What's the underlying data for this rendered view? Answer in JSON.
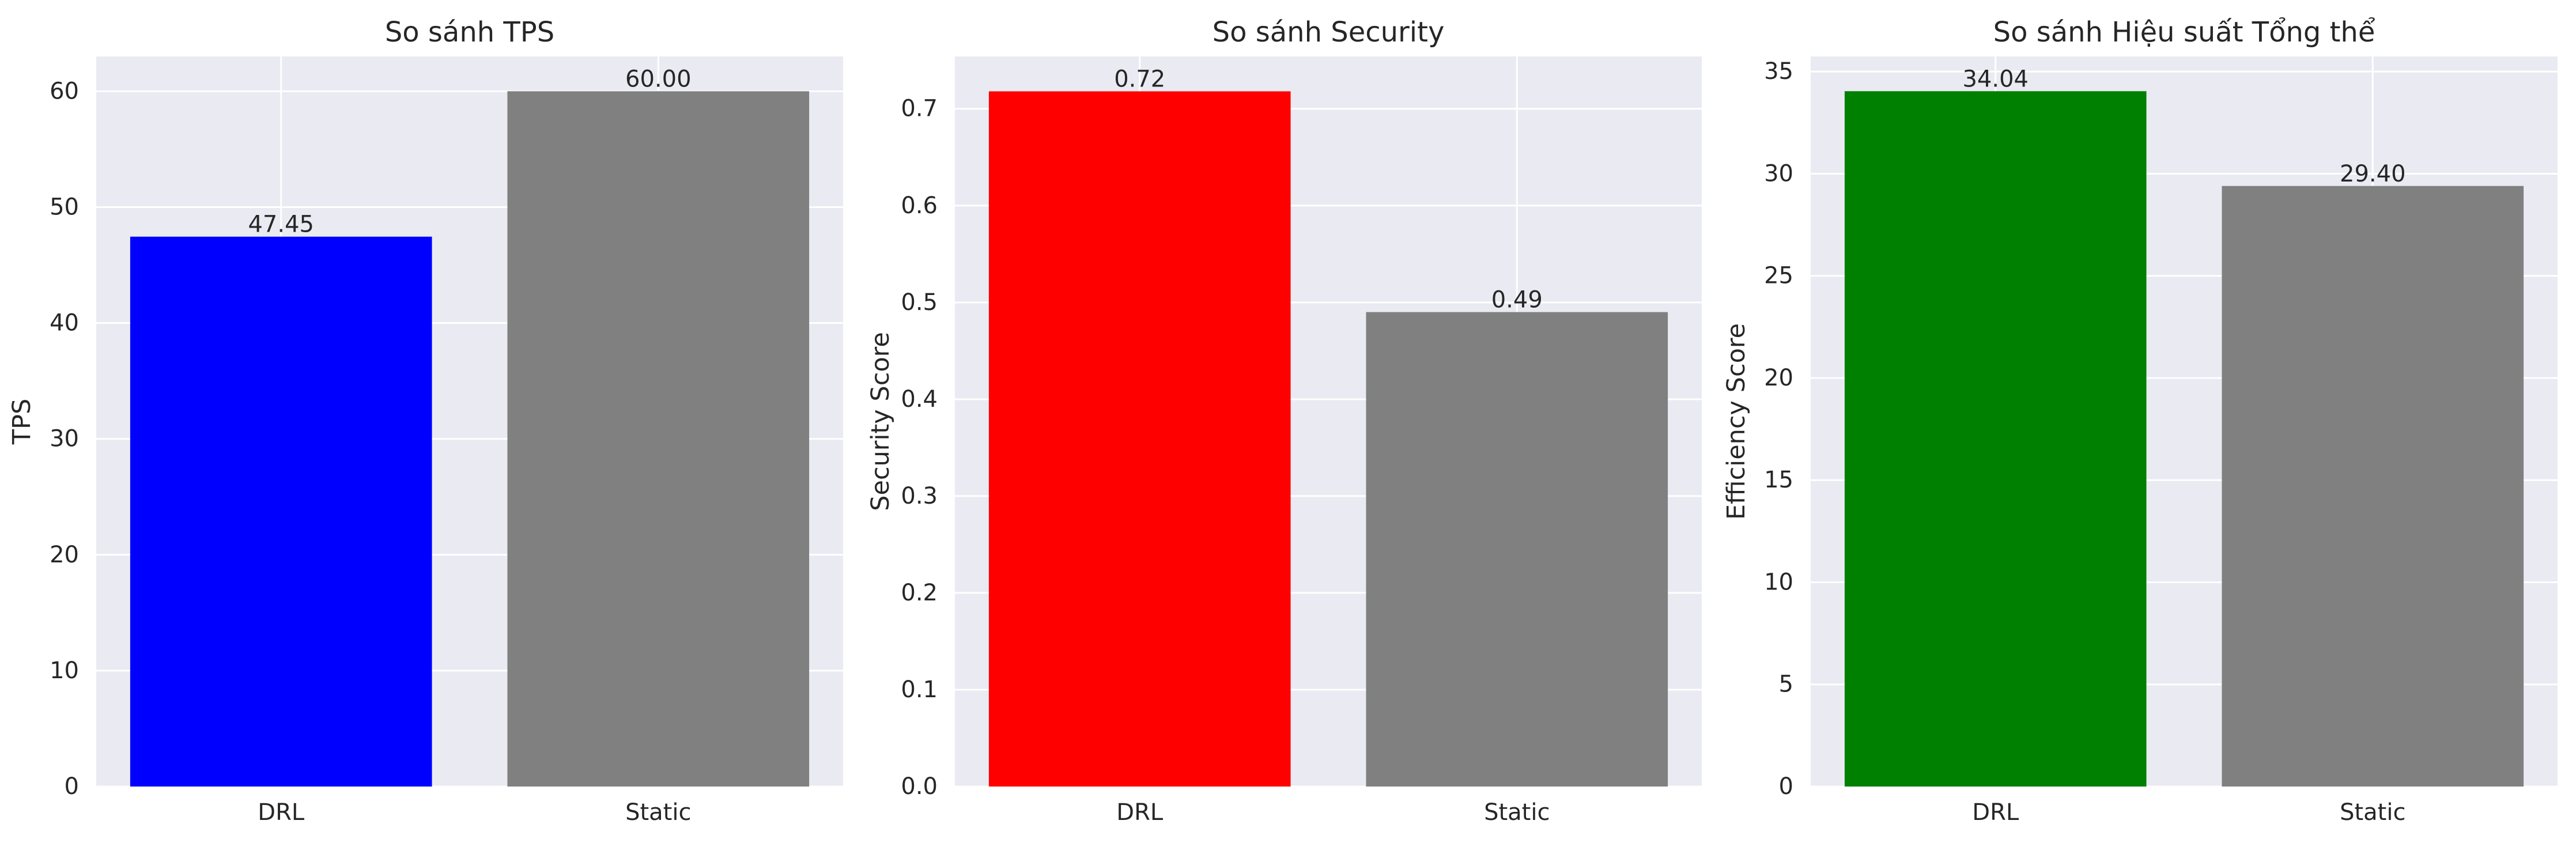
{
  "chart_data": [
    {
      "type": "bar",
      "title": "So sánh TPS",
      "xlabel": "",
      "ylabel": "TPS",
      "categories": [
        "DRL",
        "Static"
      ],
      "values": [
        47.45,
        60.0
      ],
      "value_labels": [
        "47.45",
        "60.00"
      ],
      "colors": [
        "#0000ff",
        "#808080"
      ],
      "ylim": [
        0,
        63
      ],
      "yticks": [
        0,
        10,
        20,
        30,
        40,
        50,
        60
      ],
      "ytick_labels": [
        "0",
        "10",
        "20",
        "30",
        "40",
        "50",
        "60"
      ],
      "grid": true
    },
    {
      "type": "bar",
      "title": "So sánh Security",
      "xlabel": "",
      "ylabel": "Security Score",
      "categories": [
        "DRL",
        "Static"
      ],
      "values": [
        0.718,
        0.49
      ],
      "value_labels": [
        "0.72",
        "0.49"
      ],
      "colors": [
        "#ff0000",
        "#808080"
      ],
      "ylim": [
        0,
        0.754
      ],
      "yticks": [
        0,
        0.1,
        0.2,
        0.3,
        0.4,
        0.5,
        0.6,
        0.7
      ],
      "ytick_labels": [
        "0.0",
        "0.1",
        "0.2",
        "0.3",
        "0.4",
        "0.5",
        "0.6",
        "0.7"
      ],
      "grid": true
    },
    {
      "type": "bar",
      "title": "So sánh Hiệu suất Tổng thể",
      "xlabel": "",
      "ylabel": "Efficiency Score",
      "categories": [
        "DRL",
        "Static"
      ],
      "values": [
        34.04,
        29.4
      ],
      "value_labels": [
        "34.04",
        "29.40"
      ],
      "colors": [
        "#008000",
        "#808080"
      ],
      "ylim": [
        0,
        35.74
      ],
      "yticks": [
        0,
        5,
        10,
        15,
        20,
        25,
        30,
        35
      ],
      "ytick_labels": [
        "0",
        "5",
        "10",
        "15",
        "20",
        "25",
        "30",
        "35"
      ],
      "grid": true
    }
  ]
}
